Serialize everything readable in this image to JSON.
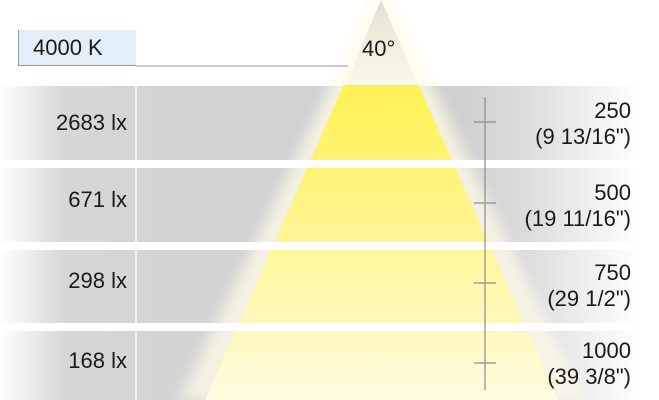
{
  "color_temperature": "4000 K",
  "beam_angle": "40°",
  "rows": [
    {
      "illuminance": "2683 lx",
      "distance_mm": "250",
      "distance_in": "(9 13/16\")"
    },
    {
      "illuminance": "671 lx",
      "distance_mm": "500",
      "distance_in": "(19 11/16\")"
    },
    {
      "illuminance": "298 lx",
      "distance_mm": "750",
      "distance_in": "(29 1/2\")"
    },
    {
      "illuminance": "168 lx",
      "distance_mm": "1000",
      "distance_in": "(39 3/8\")"
    }
  ],
  "colors": {
    "beam": "#fff35a",
    "band": "#d2d2d2",
    "label_box": "#e2eff8"
  }
}
